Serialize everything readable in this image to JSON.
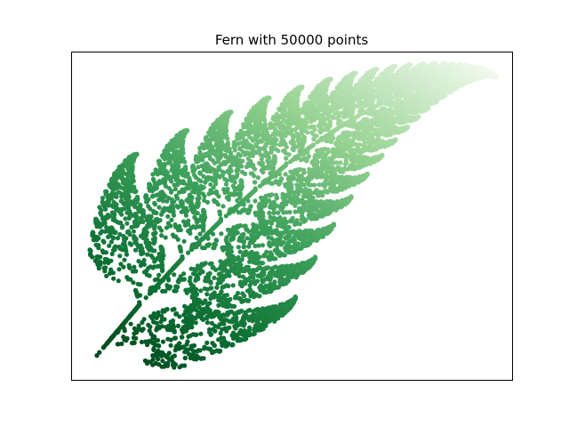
{
  "chart_data": {
    "type": "scatter",
    "title": "Fern with 50000 points",
    "xlabel": "",
    "ylabel": "",
    "xticks": [],
    "yticks": [],
    "grid": false,
    "legend": "none",
    "colormap": "Greens_r",
    "point_count": 50000,
    "ylim": [
      0,
      10
    ],
    "xlim": [
      -2.8,
      3.0
    ],
    "colors": {
      "darkest": "#00441b",
      "dark": "#1b7a3a",
      "mid": "#4fae5f",
      "light": "#a6dba0",
      "lightest": "#f7fcf5",
      "frame": "#000000",
      "background": "#ffffff"
    }
  }
}
